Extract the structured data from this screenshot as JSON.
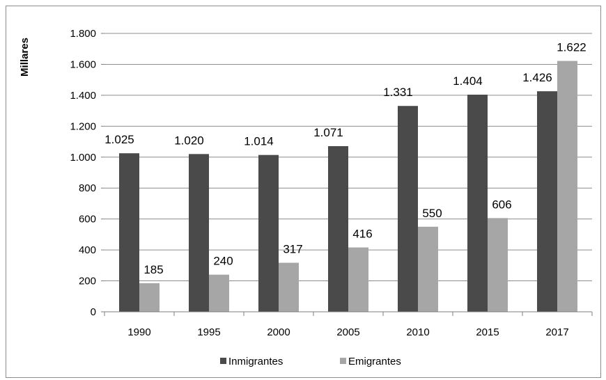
{
  "chart_data": {
    "type": "bar",
    "title": "",
    "xlabel": "",
    "ylabel": "Millares",
    "categories": [
      "1990",
      "1995",
      "2000",
      "2005",
      "2010",
      "2015",
      "2017"
    ],
    "series": [
      {
        "name": "Inmigrantes",
        "color": "#4a4a4a",
        "values": [
          1025,
          1020,
          1014,
          1071,
          1331,
          1404,
          1426
        ],
        "labels": [
          "1.025",
          "1.020",
          "1.014",
          "1.071",
          "1.331",
          "1.404",
          "1.426"
        ]
      },
      {
        "name": "Emigrantes",
        "color": "#a6a6a6",
        "values": [
          185,
          240,
          317,
          416,
          550,
          606,
          1622
        ],
        "labels": [
          "185",
          "240",
          "317",
          "416",
          "550",
          "606",
          "1.622"
        ]
      }
    ],
    "ylim": [
      0,
      1800
    ],
    "yticks": [
      0,
      200,
      400,
      600,
      800,
      1000,
      1200,
      1400,
      1600,
      1800
    ],
    "ytick_labels": [
      "0",
      "200",
      "400",
      "600",
      "800",
      "1.000",
      "1.200",
      "1.400",
      "1.600",
      "1.800"
    ],
    "grid": true,
    "legend_position": "bottom"
  }
}
